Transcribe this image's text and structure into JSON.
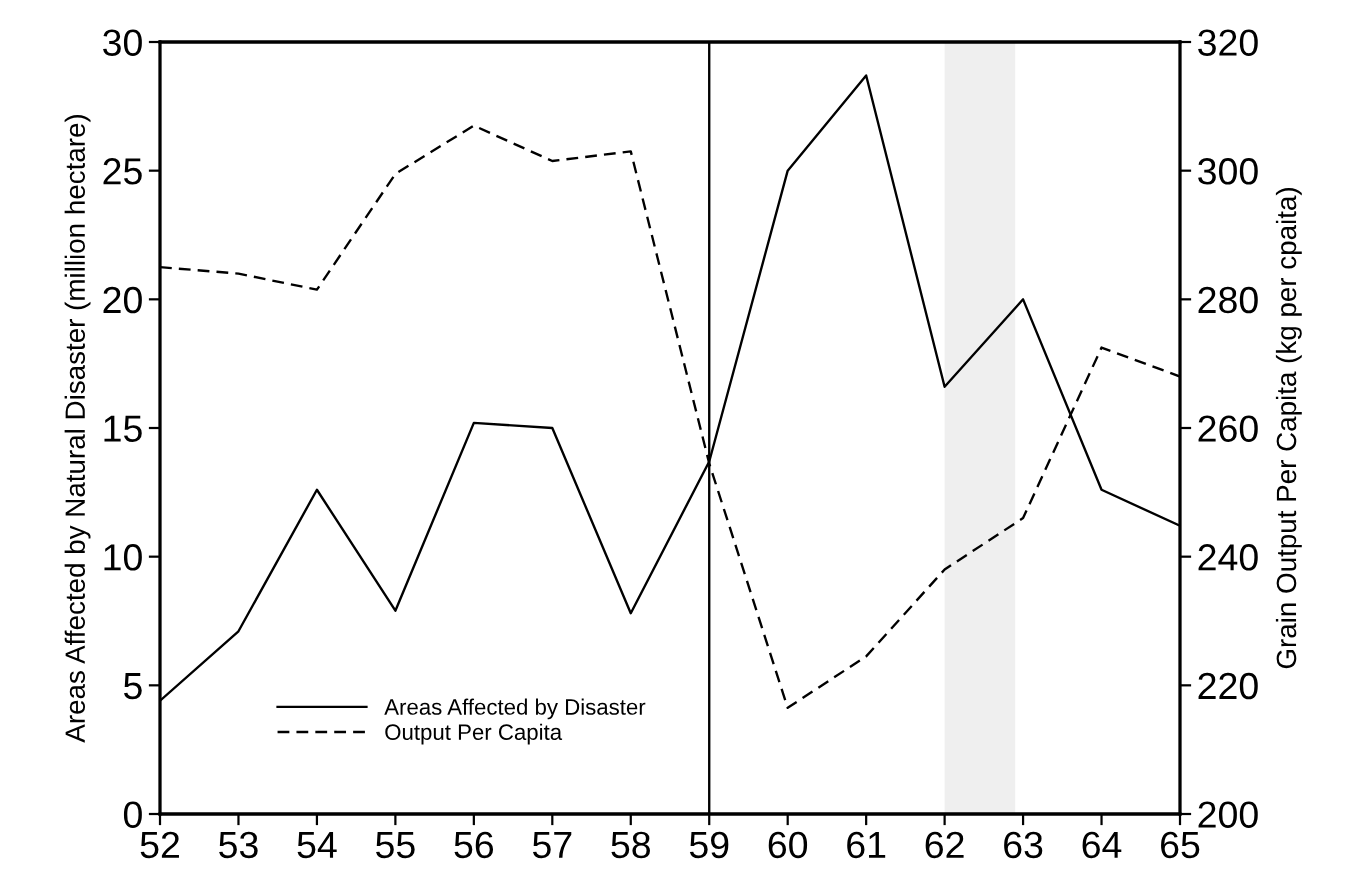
{
  "chart_data": {
    "type": "line",
    "xlabel": null,
    "ylabel": "Areas Affected by Natural Disaster (million hectare)",
    "y2label": "Grain Output Per Capita (kg per cpaita)",
    "x": [
      52,
      53,
      54,
      55,
      56,
      57,
      58,
      59,
      60,
      61,
      62,
      63,
      64,
      65
    ],
    "series": [
      {
        "name": "Areas Affected by Disaster",
        "color": "#000000",
        "line_style": "solid",
        "values": [
          4.4,
          7.1,
          12.6,
          7.9,
          15.2,
          15.0,
          7.8,
          13.7,
          25.0,
          28.7,
          16.6,
          20.0,
          12.6,
          11.2
        ]
      },
      {
        "name": "Output Per Capita",
        "color": "#000000",
        "line_style": "dashed",
        "axis": "y2",
        "values": [
          285,
          284,
          281.5,
          299.5,
          307,
          301.5,
          303,
          254.5,
          216.5,
          224.5,
          238,
          246,
          272.5,
          268
        ]
      }
    ],
    "xlim": [
      52,
      65
    ],
    "xticks": [
      52,
      53,
      54,
      55,
      56,
      57,
      58,
      59,
      60,
      61,
      62,
      63,
      64,
      65
    ],
    "ylim": [
      0,
      30
    ],
    "yticks": [
      0,
      5,
      10,
      15,
      20,
      25,
      30
    ],
    "y2lim": [
      200,
      320
    ],
    "y2ticks": [
      200,
      220,
      240,
      260,
      280,
      300,
      320
    ],
    "ref_lines": [
      {
        "axis": "x",
        "value": 59,
        "color": "#000000"
      }
    ],
    "bands": [
      {
        "axis": "x",
        "from": 62,
        "to": 62.9,
        "color": "#efefef"
      }
    ],
    "legend": "bottom left",
    "grid": false,
    "marker": "none"
  }
}
